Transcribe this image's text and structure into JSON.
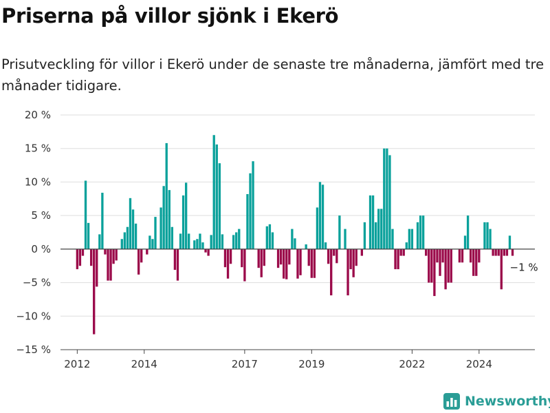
{
  "title": "Priserna på villor sjönk i Ekerö",
  "subtitle": "Prisutveckling för villor i Ekerö under de senaste tre månaderna, jämfört med tre månader tidigare.",
  "colors": {
    "positive": "#0aa19b",
    "negative": "#9b0a4a",
    "axis": "#444444",
    "grid": "#dddddd",
    "brand": "#2a9d96"
  },
  "brand": {
    "name": "Newsworthy",
    "icon": "bar-chart-logo-icon"
  },
  "chart_data": {
    "type": "bar",
    "x_start": "2012-01",
    "interval": "month",
    "ylim": [
      -15,
      20
    ],
    "yticks": [
      -15,
      -10,
      -5,
      0,
      5,
      10,
      15,
      20
    ],
    "ytick_labels": [
      "−15 %",
      "−10 %",
      "−5 %",
      "0 %",
      "5 %",
      "10 %",
      "15 %",
      "20 %"
    ],
    "xlim": [
      "2011-07",
      "2025-09"
    ],
    "xticks": [
      {
        "date": "2012-01",
        "label": "2012"
      },
      {
        "date": "2014-01",
        "label": "2014"
      },
      {
        "date": "2017-01",
        "label": "2017"
      },
      {
        "date": "2019-01",
        "label": "2019"
      },
      {
        "date": "2022-01",
        "label": "2022"
      },
      {
        "date": "2024-01",
        "label": "2024"
      }
    ],
    "grid": true,
    "values": [
      -3,
      -2.5,
      -1,
      10.2,
      3.9,
      -2.5,
      -12.7,
      -5.6,
      2.2,
      8.4,
      -0.8,
      -4.7,
      -4.7,
      -2.2,
      -1.7,
      0,
      1.5,
      2.5,
      3.3,
      7.6,
      5.9,
      3.8,
      -3.8,
      -2,
      0,
      -0.8,
      2,
      1.5,
      4.8,
      0,
      6.2,
      9.4,
      15.8,
      8.8,
      3.3,
      -3.1,
      -4.7,
      2.3,
      8,
      9.9,
      2.3,
      0,
      1.3,
      1.5,
      2.3,
      1,
      -0.5,
      -1,
      2.1,
      17,
      15.6,
      12.8,
      2.2,
      -2.7,
      -4.4,
      -2.2,
      2.1,
      2.5,
      3,
      -2.7,
      -4.8,
      8.2,
      11.3,
      13.1,
      0,
      -2.8,
      -4.2,
      -2.5,
      3.4,
      3.7,
      2.5,
      0,
      -2.8,
      -2.3,
      -4.4,
      -4.5,
      -2.3,
      3,
      1.6,
      -4.4,
      -3.9,
      0,
      0.7,
      -2.5,
      -4.3,
      -4.3,
      6.2,
      10,
      9.6,
      1,
      -2.2,
      -6.9,
      -1,
      -2.1,
      5,
      0,
      3,
      -6.9,
      -3,
      -4.2,
      -2.5,
      0,
      -1,
      4,
      0,
      8,
      8,
      4,
      6,
      6,
      15,
      15,
      14,
      3,
      -3,
      -3,
      -1,
      -1,
      1,
      3,
      3,
      0,
      4,
      5,
      5,
      -1,
      -5,
      -5,
      -7,
      -2,
      -4,
      -2,
      -6,
      -5,
      -5,
      0,
      0,
      -2,
      -2,
      2,
      5,
      -2,
      -4,
      -4,
      -2,
      0,
      4,
      4,
      3,
      -1,
      -1,
      -1,
      -6,
      -1,
      -1,
      2,
      -1
    ],
    "annotations": [
      {
        "date": "2025-01",
        "value": -1,
        "label": "−1 %"
      }
    ]
  }
}
